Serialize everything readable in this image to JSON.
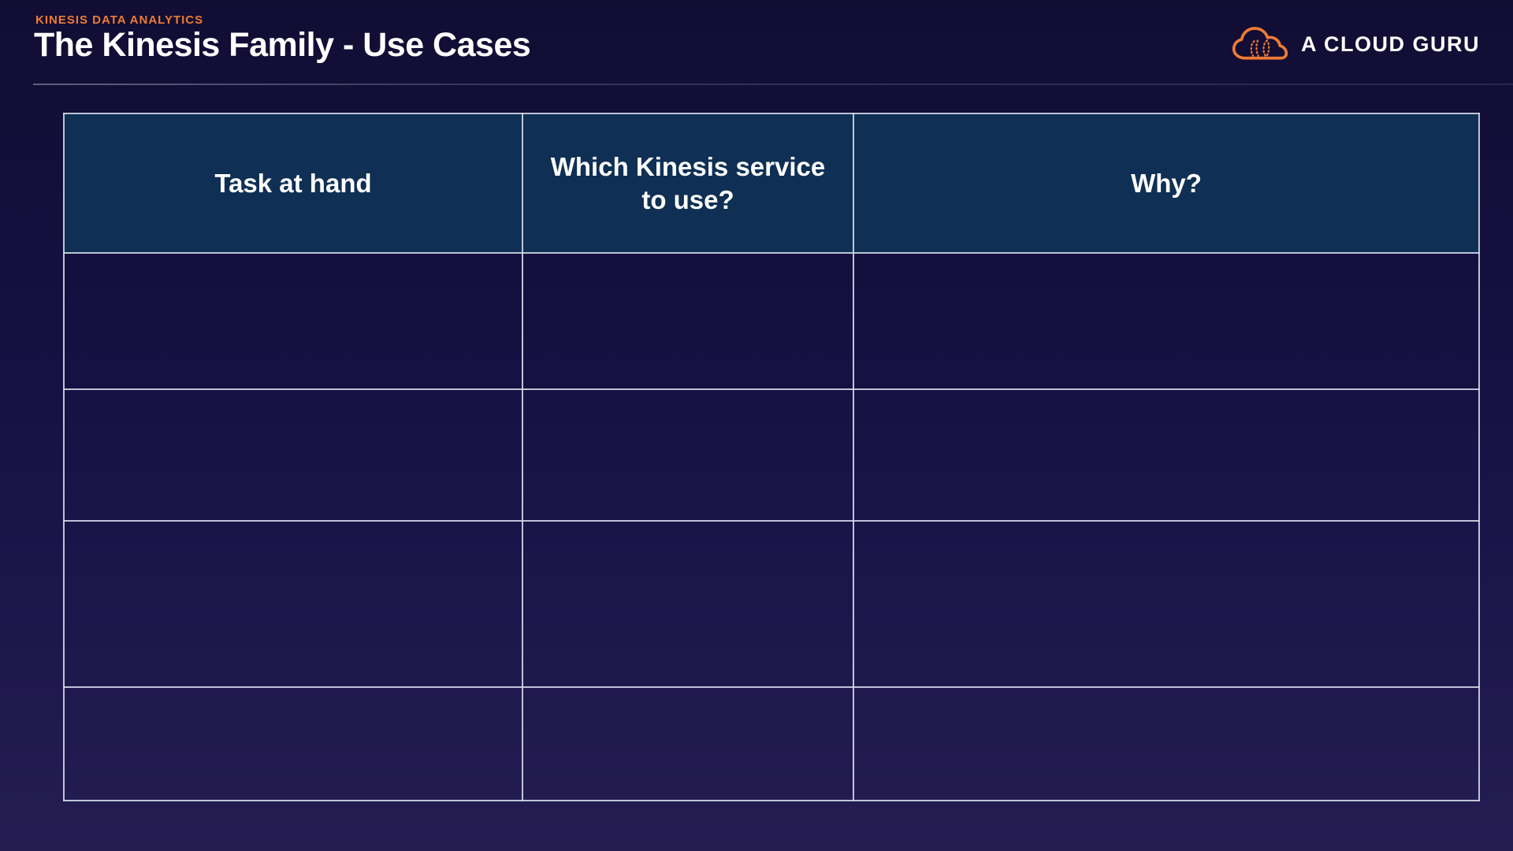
{
  "page": {
    "eyebrow": "KINESIS DATA ANALYTICS",
    "title": "The Kinesis Family - Use Cases"
  },
  "brand": {
    "name": "A CLOUD GURU",
    "icon": "cloud-outline-icon"
  },
  "table": {
    "columns": [
      "Task at hand",
      "Which Kinesis service to use?",
      "Why?"
    ],
    "rows": [
      [
        "",
        "",
        ""
      ],
      [
        "",
        "",
        ""
      ],
      [
        "",
        "",
        ""
      ],
      [
        "",
        "",
        ""
      ]
    ]
  },
  "colors": {
    "accent_orange": "#EE7B35",
    "table_header_bg": "#0F3054",
    "table_border": "#D6DBEC",
    "background_top": "#110D33",
    "background_bottom": "#251D52",
    "text_primary": "#FFFFFF"
  }
}
